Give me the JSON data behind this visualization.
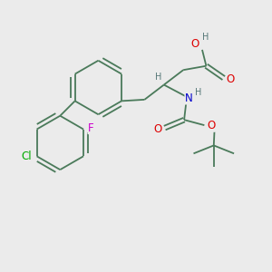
{
  "bg_color": "#ebebeb",
  "bond_color": "#4a7a5a",
  "atom_colors": {
    "O": "#dd0000",
    "N": "#0000cc",
    "F": "#cc00cc",
    "Cl": "#00aa00",
    "H": "#557777",
    "C": "#4a7a5a"
  },
  "font_size_atom": 8.5,
  "font_size_small": 7.0,
  "lw": 1.3
}
